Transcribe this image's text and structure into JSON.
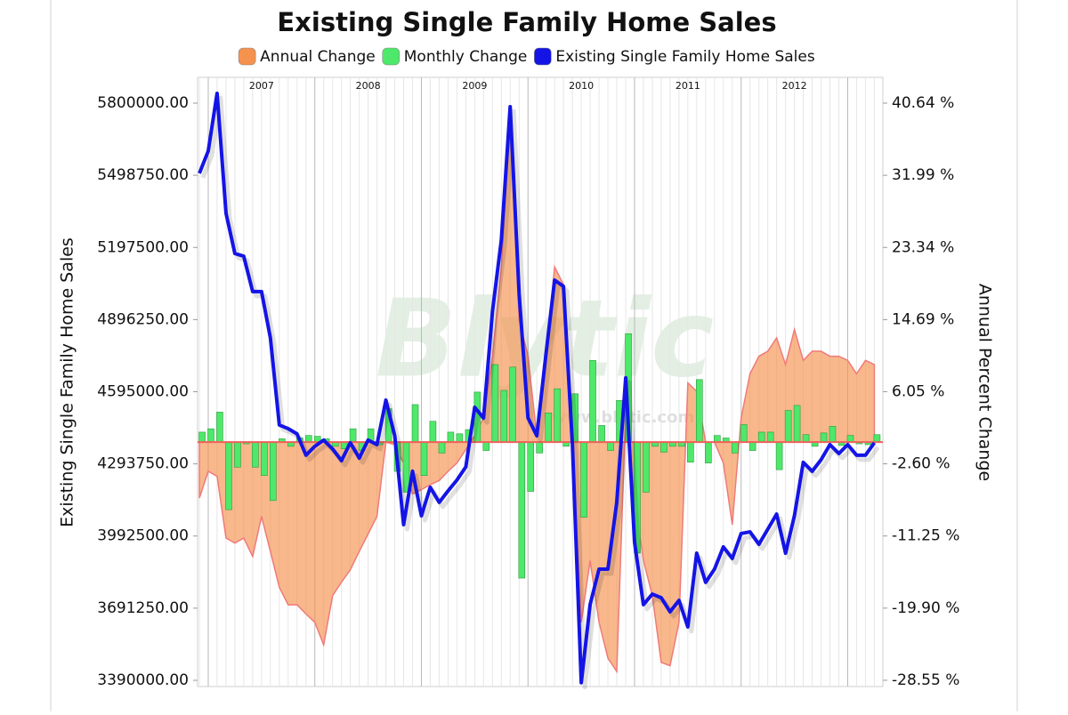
{
  "chart_data": {
    "type": "combo",
    "title": "Existing Single Family Home Sales",
    "y_label": "Existing Single Family Home Sales",
    "y2_label": "Annual Percent Change",
    "annotations": [
      "Blytic",
      "www.blytic.com"
    ],
    "grid": "x",
    "x": [
      2006.917,
      2007,
      2007.083,
      2007.167,
      2007.25,
      2007.333,
      2007.417,
      2007.5,
      2007.583,
      2007.667,
      2007.75,
      2007.833,
      2007.917,
      2008,
      2008.083,
      2008.167,
      2008.25,
      2008.333,
      2008.417,
      2008.5,
      2008.583,
      2008.667,
      2008.75,
      2008.833,
      2008.917,
      2009,
      2009.083,
      2009.167,
      2009.25,
      2009.333,
      2009.417,
      2009.5,
      2009.583,
      2009.667,
      2009.75,
      2009.833,
      2009.917,
      2010,
      2010.083,
      2010.167,
      2010.25,
      2010.333,
      2010.417,
      2010.5,
      2010.583,
      2010.667,
      2010.75,
      2010.833,
      2010.917,
      2011,
      2011.083,
      2011.167,
      2011.25,
      2011.333,
      2011.417,
      2011.5,
      2011.583,
      2011.667,
      2011.75,
      2011.833,
      2011.917,
      2012,
      2012.083,
      2012.167,
      2012.25,
      2012.333,
      2012.417,
      2012.5,
      2012.583,
      2012.667,
      2012.75,
      2012.833,
      2012.917,
      2013,
      2013.083,
      2013.167,
      2013.25
    ],
    "xlim": [
      2006.9,
      2013.33
    ],
    "xticks": [
      {
        "value": 2007.5,
        "label": "2007"
      },
      {
        "value": 2008.5,
        "label": "2008"
      },
      {
        "value": 2009.5,
        "label": "2009"
      },
      {
        "value": 2010.5,
        "label": "2010"
      },
      {
        "value": 2011.5,
        "label": "2011"
      },
      {
        "value": 2012.5,
        "label": "2012"
      }
    ],
    "ylim": [
      3364000,
      5907700
    ],
    "yticks": [
      {
        "value": 5800000,
        "label": "5800000.00"
      },
      {
        "value": 5498750,
        "label": "5498750.00"
      },
      {
        "value": 5197500,
        "label": "5197500.00"
      },
      {
        "value": 4896250,
        "label": "4896250.00"
      },
      {
        "value": 4595000,
        "label": "4595000.00"
      },
      {
        "value": 4293750,
        "label": "4293750.00"
      },
      {
        "value": 3992500,
        "label": "3992500.00"
      },
      {
        "value": 3691250,
        "label": "3691250.00"
      },
      {
        "value": 3390000,
        "label": "3390000.00"
      }
    ],
    "y2lim": [
      -29.3,
      43.73
    ],
    "y2ticks": [
      {
        "value": 40.64,
        "label": "40.64 %"
      },
      {
        "value": 31.99,
        "label": "31.99 %"
      },
      {
        "value": 23.34,
        "label": "23.34 %"
      },
      {
        "value": 14.69,
        "label": "14.69 %"
      },
      {
        "value": 6.05,
        "label": "6.05 %"
      },
      {
        "value": -2.6,
        "label": "-2.60 %"
      },
      {
        "value": -11.25,
        "label": "-11.25 %"
      },
      {
        "value": -19.9,
        "label": "-19.90 %"
      },
      {
        "value": -28.55,
        "label": "-28.55 %"
      }
    ],
    "series": [
      {
        "name": "Annual Change",
        "type": "area",
        "axis": "y2",
        "color": "#f5924e",
        "values": [
          -6.7,
          -3.5,
          -4.1,
          -11.5,
          -12.1,
          -11.5,
          -13.7,
          -8.9,
          -13.1,
          -17.4,
          -19.5,
          -19.5,
          -20.6,
          -21.6,
          -24.3,
          -18.4,
          -16.8,
          -15.3,
          -13.1,
          -11.0,
          -8.9,
          0,
          -0.3,
          -2.5,
          -6.2,
          -5.7,
          -5.1,
          -4.6,
          -3.5,
          -2.5,
          -0.9,
          0.8,
          2.9,
          10.3,
          21.0,
          38.6,
          14.6,
          10.3,
          0.8,
          10.3,
          21.0,
          18.9,
          -0.3,
          -21.6,
          -14.2,
          -21.6,
          -25.9,
          -27.5,
          3.9,
          -6.7,
          -14.2,
          -18.4,
          -26.4,
          -26.8,
          -21.6,
          7.1,
          6.1,
          0,
          0,
          -2.5,
          -9.9,
          2.9,
          8.2,
          10.3,
          10.9,
          12.5,
          9.3,
          13.5,
          9.8,
          10.9,
          10.9,
          10.3,
          10.3,
          9.8,
          8.2,
          9.8,
          9.3
        ]
      },
      {
        "name": "Monthly Change",
        "type": "bar",
        "axis": "y2",
        "color": "#4ee86a",
        "values": [
          1.2,
          1.6,
          3.6,
          -8.1,
          -3.0,
          -0.2,
          -3.0,
          -4.0,
          -7.0,
          0.4,
          -0.5,
          0.5,
          0.8,
          0.7,
          0.4,
          -0.5,
          -0.8,
          1.6,
          -1.0,
          1.6,
          -0.3,
          4.0,
          -3.5,
          -6.0,
          4.5,
          -4.0,
          2.5,
          -1.3,
          1.2,
          1.0,
          1.5,
          6.0,
          -1.0,
          9.3,
          6.2,
          9.0,
          -16.3,
          -5.9,
          -1.3,
          3.5,
          6.4,
          -0.5,
          5.8,
          -9.0,
          9.8,
          2.0,
          -1.0,
          5.0,
          13.0,
          -13.3,
          -6.0,
          -0.5,
          -1.2,
          -0.5,
          -0.5,
          -2.4,
          7.5,
          -2.5,
          0.8,
          0.5,
          -1.3,
          2.1,
          -1.0,
          1.2,
          1.2,
          -3.3,
          3.8,
          4.4,
          0.9,
          -0.5,
          1.1,
          1.9,
          -0.4,
          0.8,
          -0.2,
          -0.3,
          0.9
        ]
      },
      {
        "name": "Existing Single Family Home Sales",
        "type": "line",
        "color": "#1414e6",
        "values": [
          5507000,
          5600000,
          5841000,
          5340000,
          5172000,
          5161000,
          5013000,
          5013000,
          4820000,
          4456000,
          4441000,
          4419000,
          4330000,
          4367000,
          4393000,
          4356000,
          4307000,
          4382000,
          4318000,
          4393000,
          4374000,
          4560000,
          4411000,
          4040000,
          4263000,
          4077000,
          4196000,
          4133000,
          4181000,
          4226000,
          4281000,
          4530000,
          4485000,
          4931000,
          5228000,
          5785000,
          5005000,
          4486000,
          4411000,
          4745000,
          5061000,
          5035000,
          4374000,
          3380000,
          3706000,
          3854000,
          3854000,
          4133000,
          4653000,
          3966000,
          3706000,
          3750000,
          3735000,
          3676000,
          3724000,
          3613000,
          3921000,
          3799000,
          3854000,
          3947000,
          3899000,
          4003000,
          4010000,
          3958000,
          4021000,
          4084000,
          3921000,
          4077000,
          4300000,
          4263000,
          4311000,
          4374000,
          4337000,
          4374000,
          4330000,
          4330000,
          4382000
        ]
      }
    ]
  }
}
